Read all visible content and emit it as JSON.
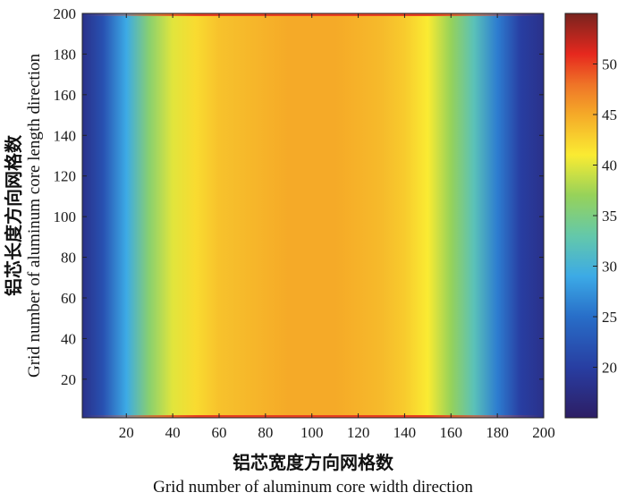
{
  "chart_data": {
    "type": "heatmap",
    "xlabel_cn": "铝芯宽度方向网格数",
    "xlabel_en": "Grid number of aluminum core width direction",
    "ylabel_cn": "铝芯长度方向网格数",
    "ylabel_en": "Grid number of aluminum core length direction",
    "xlim": [
      1,
      200
    ],
    "ylim": [
      1,
      200
    ],
    "xticks": [
      20,
      40,
      60,
      80,
      100,
      120,
      140,
      160,
      180,
      200
    ],
    "yticks": [
      20,
      40,
      60,
      80,
      100,
      120,
      140,
      160,
      180,
      200
    ],
    "colorbar": {
      "range": [
        15,
        55
      ],
      "ticks": [
        20,
        25,
        30,
        35,
        40,
        45,
        50
      ],
      "colormap": "jet-like"
    },
    "x_profile": {
      "x": [
        1,
        10,
        20,
        30,
        40,
        50,
        60,
        70,
        80,
        90,
        100,
        110,
        120,
        130,
        140,
        150,
        160,
        170,
        180,
        190,
        200
      ],
      "value": [
        18,
        22,
        29,
        36,
        40,
        42,
        43.5,
        44,
        44.5,
        45,
        45,
        45,
        44.5,
        44,
        43,
        41,
        37,
        32,
        26,
        20,
        18
      ]
    },
    "edge_rows": {
      "y_values": [
        1,
        200
      ],
      "center_value": 50
    }
  }
}
